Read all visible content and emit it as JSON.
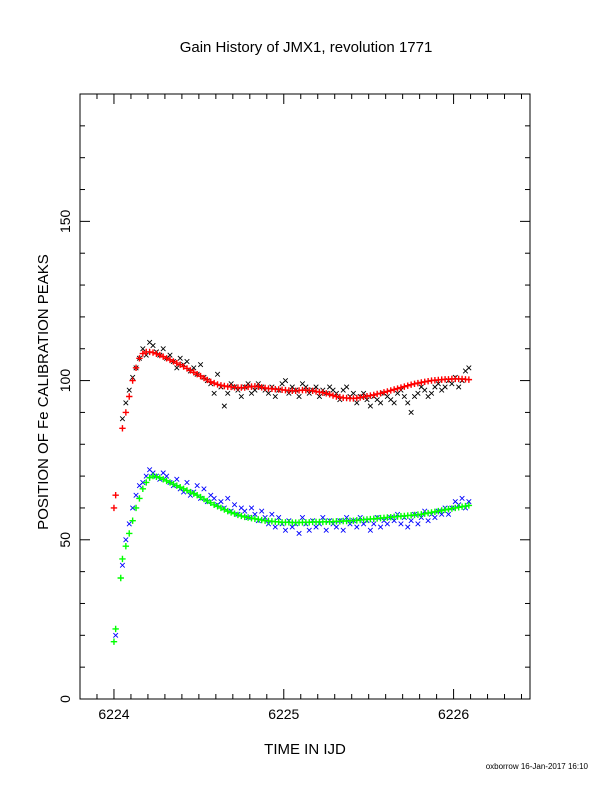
{
  "chart_data": {
    "type": "scatter",
    "title": "Gain History of JMX1, revolution 1771",
    "xlabel": "TIME IN IJD",
    "ylabel": "POSITION OF Fe CALIBRATION PEAKS",
    "xlim": [
      6223.8,
      6226.45
    ],
    "ylim": [
      0,
      190
    ],
    "x_ticks": [
      6224,
      6225,
      6226
    ],
    "y_ticks": [
      0,
      50,
      100,
      150
    ],
    "grid": false,
    "legend": "none",
    "series": [
      {
        "color": "#000000",
        "marker": "x",
        "x": [
          6224.05,
          6224.07,
          6224.09,
          6224.11,
          6224.13,
          6224.15,
          6224.17,
          6224.19,
          6224.21,
          6224.23,
          6224.25,
          6224.27,
          6224.29,
          6224.31,
          6224.33,
          6224.35,
          6224.37,
          6224.39,
          6224.41,
          6224.43,
          6224.45,
          6224.47,
          6224.49,
          6224.51,
          6224.53,
          6224.55,
          6224.57,
          6224.59,
          6224.61,
          6224.63,
          6224.65,
          6224.67,
          6224.69,
          6224.71,
          6224.73,
          6224.75,
          6224.77,
          6224.79,
          6224.81,
          6224.83,
          6224.85,
          6224.87,
          6224.89,
          6224.91,
          6224.93,
          6224.95,
          6224.97,
          6224.99,
          6225.01,
          6225.03,
          6225.05,
          6225.07,
          6225.09,
          6225.11,
          6225.13,
          6225.15,
          6225.17,
          6225.19,
          6225.21,
          6225.23,
          6225.25,
          6225.27,
          6225.29,
          6225.31,
          6225.33,
          6225.35,
          6225.37,
          6225.39,
          6225.41,
          6225.43,
          6225.45,
          6225.47,
          6225.49,
          6225.51,
          6225.53,
          6225.55,
          6225.57,
          6225.59,
          6225.61,
          6225.63,
          6225.65,
          6225.67,
          6225.69,
          6225.71,
          6225.73,
          6225.75,
          6225.77,
          6225.79,
          6225.81,
          6225.83,
          6225.85,
          6225.87,
          6225.89,
          6225.91,
          6225.93,
          6225.95,
          6225.97,
          6225.99,
          6226.01,
          6226.03,
          6226.05,
          6226.07,
          6226.09
        ],
        "y": [
          88,
          93,
          97,
          101,
          104,
          107,
          110,
          108,
          112,
          111,
          109,
          108,
          110,
          107,
          108,
          106,
          104,
          107,
          105,
          106,
          103,
          104,
          102,
          105,
          101,
          100,
          99,
          96,
          102,
          98,
          92,
          96,
          99,
          98,
          97,
          95,
          98,
          99,
          96,
          97,
          99,
          98,
          97,
          96,
          98,
          95,
          97,
          99,
          100,
          96,
          98,
          97,
          95,
          99,
          98,
          96,
          97,
          98,
          95,
          97,
          96,
          98,
          97,
          96,
          94,
          97,
          98,
          95,
          96,
          93,
          95,
          96,
          94,
          92,
          95,
          94,
          93,
          96,
          95,
          94,
          93,
          96,
          97,
          95,
          93,
          90,
          95,
          96,
          98,
          97,
          95,
          96,
          98,
          99,
          97,
          98,
          100,
          99,
          101,
          98,
          100,
          103,
          104
        ]
      },
      {
        "color": "#ff0000",
        "marker": "+",
        "x": [
          6224.0,
          6224.01,
          6224.05,
          6224.07,
          6224.09,
          6224.11,
          6224.13,
          6224.15,
          6224.17,
          6224.19,
          6224.21,
          6224.23,
          6224.25,
          6224.27,
          6224.29,
          6224.31,
          6224.33,
          6224.35,
          6224.37,
          6224.39,
          6224.41,
          6224.43,
          6224.45,
          6224.47,
          6224.49,
          6224.51,
          6224.53,
          6224.55,
          6224.57,
          6224.59,
          6224.61,
          6224.63,
          6224.65,
          6224.67,
          6224.69,
          6224.71,
          6224.73,
          6224.75,
          6224.77,
          6224.79,
          6224.81,
          6224.83,
          6224.85,
          6224.87,
          6224.89,
          6224.91,
          6224.93,
          6224.95,
          6224.97,
          6224.99,
          6225.01,
          6225.03,
          6225.05,
          6225.07,
          6225.09,
          6225.11,
          6225.13,
          6225.15,
          6225.17,
          6225.19,
          6225.21,
          6225.23,
          6225.25,
          6225.27,
          6225.29,
          6225.31,
          6225.33,
          6225.35,
          6225.37,
          6225.39,
          6225.41,
          6225.43,
          6225.45,
          6225.47,
          6225.49,
          6225.51,
          6225.53,
          6225.55,
          6225.57,
          6225.59,
          6225.61,
          6225.63,
          6225.65,
          6225.67,
          6225.69,
          6225.71,
          6225.73,
          6225.75,
          6225.77,
          6225.79,
          6225.81,
          6225.83,
          6225.85,
          6225.87,
          6225.89,
          6225.91,
          6225.93,
          6225.95,
          6225.97,
          6225.99,
          6226.01,
          6226.03,
          6226.05,
          6226.07,
          6226.09
        ],
        "y": [
          60,
          64,
          85,
          90,
          95,
          100,
          104,
          107,
          108.5,
          109,
          109,
          108.8,
          108.4,
          108,
          107.5,
          107,
          106.5,
          106,
          105.5,
          105,
          104.4,
          103.8,
          103.2,
          102.6,
          102,
          101.4,
          100.8,
          100.2,
          99.6,
          99.2,
          98.8,
          98.5,
          98.3,
          98.1,
          98,
          97.9,
          97.8,
          97.8,
          97.8,
          98,
          98.1,
          98.2,
          98.1,
          97.9,
          97.7,
          97.5,
          97.4,
          97.3,
          97.2,
          97.1,
          97,
          96.9,
          96.8,
          96.8,
          96.9,
          97,
          97,
          96.9,
          96.8,
          96.6,
          96.4,
          96.2,
          96,
          95.7,
          95.3,
          95,
          94.8,
          94.6,
          94.5,
          94.4,
          94.4,
          94.5,
          94.7,
          94.9,
          95.1,
          95.3,
          95.5,
          95.8,
          96,
          96.3,
          96.6,
          96.9,
          97.2,
          97.5,
          97.8,
          98.1,
          98.4,
          98.7,
          99,
          99.2,
          99.4,
          99.6,
          99.8,
          100,
          100.1,
          100.2,
          100.3,
          100.4,
          100.4,
          100.5,
          100.5,
          100.5,
          100.5,
          100.4,
          100.3
        ]
      },
      {
        "color": "#0000ff",
        "marker": "x",
        "x": [
          6224.01,
          6224.05,
          6224.07,
          6224.09,
          6224.11,
          6224.13,
          6224.15,
          6224.17,
          6224.19,
          6224.21,
          6224.23,
          6224.25,
          6224.27,
          6224.29,
          6224.31,
          6224.33,
          6224.35,
          6224.37,
          6224.39,
          6224.41,
          6224.43,
          6224.45,
          6224.47,
          6224.49,
          6224.51,
          6224.53,
          6224.55,
          6224.57,
          6224.59,
          6224.61,
          6224.63,
          6224.65,
          6224.67,
          6224.69,
          6224.71,
          6224.73,
          6224.75,
          6224.77,
          6224.79,
          6224.81,
          6224.83,
          6224.85,
          6224.87,
          6224.89,
          6224.91,
          6224.93,
          6224.95,
          6224.97,
          6224.99,
          6225.01,
          6225.03,
          6225.05,
          6225.07,
          6225.09,
          6225.11,
          6225.13,
          6225.15,
          6225.17,
          6225.19,
          6225.21,
          6225.23,
          6225.25,
          6225.27,
          6225.29,
          6225.31,
          6225.33,
          6225.35,
          6225.37,
          6225.39,
          6225.41,
          6225.43,
          6225.45,
          6225.47,
          6225.49,
          6225.51,
          6225.53,
          6225.55,
          6225.57,
          6225.59,
          6225.61,
          6225.63,
          6225.65,
          6225.67,
          6225.69,
          6225.71,
          6225.73,
          6225.75,
          6225.77,
          6225.79,
          6225.81,
          6225.83,
          6225.85,
          6225.87,
          6225.89,
          6225.91,
          6225.93,
          6225.95,
          6225.97,
          6225.99,
          6226.01,
          6226.03,
          6226.05,
          6226.07,
          6226.09
        ],
        "y": [
          20,
          42,
          50,
          55,
          60,
          64,
          67,
          68,
          70,
          72,
          71,
          70,
          69,
          71,
          70,
          68,
          67,
          69,
          66,
          65,
          68,
          64,
          65,
          67,
          63,
          66,
          62,
          64,
          63,
          61,
          62,
          60,
          63,
          59,
          61,
          58,
          60,
          59,
          57,
          60,
          58,
          56,
          59,
          57,
          55,
          58,
          54,
          57,
          55,
          53,
          56,
          54,
          55,
          52,
          57,
          55,
          53,
          56,
          54,
          55,
          57,
          53,
          56,
          55,
          54,
          56,
          53,
          57,
          55,
          56,
          54,
          57,
          55,
          56,
          53,
          55,
          57,
          54,
          56,
          55,
          57,
          56,
          58,
          55,
          57,
          54,
          56,
          58,
          55,
          57,
          59,
          56,
          58,
          57,
          59,
          58,
          60,
          58,
          60,
          62,
          61,
          63,
          60,
          62
        ]
      },
      {
        "color": "#00ff00",
        "marker": "+",
        "x": [
          6224.0,
          6224.01,
          6224.04,
          6224.05,
          6224.07,
          6224.09,
          6224.11,
          6224.13,
          6224.15,
          6224.17,
          6224.19,
          6224.21,
          6224.23,
          6224.25,
          6224.27,
          6224.29,
          6224.31,
          6224.33,
          6224.35,
          6224.37,
          6224.39,
          6224.41,
          6224.43,
          6224.45,
          6224.47,
          6224.49,
          6224.51,
          6224.53,
          6224.55,
          6224.57,
          6224.59,
          6224.61,
          6224.63,
          6224.65,
          6224.67,
          6224.69,
          6224.71,
          6224.73,
          6224.75,
          6224.77,
          6224.79,
          6224.81,
          6224.83,
          6224.85,
          6224.87,
          6224.89,
          6224.91,
          6224.93,
          6224.95,
          6224.97,
          6224.99,
          6225.01,
          6225.03,
          6225.05,
          6225.07,
          6225.09,
          6225.11,
          6225.13,
          6225.15,
          6225.17,
          6225.19,
          6225.21,
          6225.23,
          6225.25,
          6225.27,
          6225.29,
          6225.31,
          6225.33,
          6225.35,
          6225.37,
          6225.39,
          6225.41,
          6225.43,
          6225.45,
          6225.47,
          6225.49,
          6225.51,
          6225.53,
          6225.55,
          6225.57,
          6225.59,
          6225.61,
          6225.63,
          6225.65,
          6225.67,
          6225.69,
          6225.71,
          6225.73,
          6225.75,
          6225.77,
          6225.79,
          6225.81,
          6225.83,
          6225.85,
          6225.87,
          6225.89,
          6225.91,
          6225.93,
          6225.95,
          6225.97,
          6225.99,
          6226.01,
          6226.03,
          6226.05,
          6226.07,
          6226.09
        ],
        "y": [
          18,
          22,
          38,
          44,
          48,
          52,
          56,
          60,
          63,
          66,
          68,
          69.5,
          70,
          69.8,
          69.5,
          69,
          68.5,
          68,
          67.5,
          67,
          66.5,
          66,
          65.5,
          65,
          64.5,
          64,
          63.4,
          62.8,
          62.2,
          61.6,
          61,
          60.5,
          60,
          59.5,
          59,
          58.6,
          58.2,
          57.8,
          57.5,
          57.2,
          57,
          56.8,
          56.6,
          56.4,
          56.2,
          56,
          55.9,
          55.8,
          55.7,
          55.6,
          55.5,
          55.5,
          55.5,
          55.4,
          55.4,
          55.4,
          55.5,
          55.5,
          55.5,
          55.6,
          55.6,
          55.6,
          55.6,
          55.7,
          55.7,
          55.7,
          55.8,
          55.8,
          55.9,
          55.9,
          56,
          56,
          56.1,
          56.2,
          56.3,
          56.4,
          56.5,
          56.6,
          56.7,
          56.8,
          56.9,
          57,
          57.1,
          57.2,
          57.3,
          57.4,
          57.5,
          57.6,
          57.7,
          57.8,
          57.9,
          58,
          58.2,
          58.4,
          58.6,
          58.8,
          59,
          59.2,
          59.4,
          59.6,
          59.8,
          60,
          60.2,
          60.4,
          60.6,
          60.8
        ]
      }
    ]
  },
  "footer": {
    "stamp": "oxborrow 16-Jan-2017 16:10"
  }
}
